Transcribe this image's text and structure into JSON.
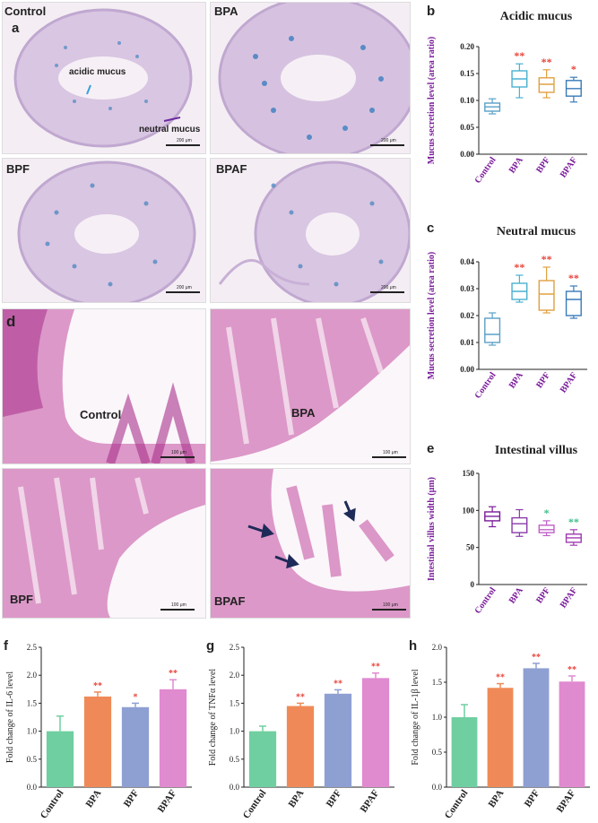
{
  "micro_a": {
    "panel_label": "a",
    "groups": [
      "Control",
      "BPA",
      "BPF",
      "BPAF"
    ],
    "acidic_label": "acidic mucus",
    "neutral_label": "neutral mucus",
    "scale_label": "200 μm"
  },
  "micro_d": {
    "panel_label": "d",
    "groups": [
      "Control",
      "BPA",
      "BPF",
      "BPAF"
    ],
    "scale_label": "100 μm"
  },
  "colors": {
    "control": "#6fcfa0",
    "bpa": "#ef8a58",
    "bpf": "#8e9fd2",
    "bpaf": "#e08ad0",
    "sig_red": "#e8443a",
    "sig_green": "#3fbf8a",
    "purple_label": "#7a1a9a"
  },
  "chart_data": [
    {
      "panel": "b",
      "type": "box",
      "title": "Acidic mucus",
      "ylabel": "Mucus secretion level (area ratio)",
      "categories": [
        "Control",
        "BPA",
        "BPF",
        "BPAF"
      ],
      "ylim": [
        0,
        0.2
      ],
      "yticks": [
        "0.00",
        "0.05",
        "0.10",
        "0.15",
        "0.20"
      ],
      "box_colors": [
        "#5aa0c8",
        "#4ab0d0",
        "#e0a040",
        "#3a7ab8"
      ],
      "boxes": [
        {
          "min": 0.075,
          "q1": 0.08,
          "median": 0.088,
          "q3": 0.095,
          "max": 0.103
        },
        {
          "min": 0.105,
          "q1": 0.125,
          "median": 0.14,
          "q3": 0.155,
          "max": 0.168
        },
        {
          "min": 0.105,
          "q1": 0.115,
          "median": 0.13,
          "q3": 0.142,
          "max": 0.157
        },
        {
          "min": 0.097,
          "q1": 0.108,
          "median": 0.122,
          "q3": 0.137,
          "max": 0.143
        }
      ],
      "significance": [
        "",
        "**",
        "**",
        "*"
      ],
      "sig_colors": [
        "",
        "#e8443a",
        "#e8443a",
        "#e8443a"
      ]
    },
    {
      "panel": "c",
      "type": "box",
      "title": "Neutral mucus",
      "ylabel": "Mucus secretion level (area ratio)",
      "categories": [
        "Control",
        "BPA",
        "BPF",
        "BPAF"
      ],
      "ylim": [
        0,
        0.04
      ],
      "yticks": [
        "0.00",
        "0.01",
        "0.02",
        "0.03",
        "0.04"
      ],
      "box_colors": [
        "#5aa0c8",
        "#4ab0d0",
        "#e0a040",
        "#3a7ab8"
      ],
      "boxes": [
        {
          "min": 0.009,
          "q1": 0.01,
          "median": 0.013,
          "q3": 0.019,
          "max": 0.021
        },
        {
          "min": 0.025,
          "q1": 0.026,
          "median": 0.029,
          "q3": 0.032,
          "max": 0.035
        },
        {
          "min": 0.021,
          "q1": 0.022,
          "median": 0.028,
          "q3": 0.033,
          "max": 0.038
        },
        {
          "min": 0.019,
          "q1": 0.02,
          "median": 0.026,
          "q3": 0.029,
          "max": 0.031
        }
      ],
      "significance": [
        "",
        "**",
        "**",
        "**"
      ],
      "sig_colors": [
        "",
        "#e8443a",
        "#e8443a",
        "#e8443a"
      ]
    },
    {
      "panel": "e",
      "type": "box",
      "title": "Intestinal villus",
      "ylabel": "Intestinal villus width (μm)",
      "categories": [
        "Control",
        "BPA",
        "BPF",
        "BPAF"
      ],
      "ylim": [
        0,
        150
      ],
      "yticks": [
        "0",
        "50",
        "100",
        "150"
      ],
      "box_colors": [
        "#7a1a9a",
        "#8a3aa8",
        "#c060c8",
        "#a03ab0"
      ],
      "boxes": [
        {
          "min": 78,
          "q1": 86,
          "median": 92,
          "q3": 98,
          "max": 105
        },
        {
          "min": 65,
          "q1": 70,
          "median": 82,
          "q3": 90,
          "max": 101
        },
        {
          "min": 66,
          "q1": 70,
          "median": 74,
          "q3": 80,
          "max": 86
        },
        {
          "min": 53,
          "q1": 57,
          "median": 63,
          "q3": 68,
          "max": 74
        }
      ],
      "significance": [
        "",
        "",
        "*",
        "**"
      ],
      "sig_colors": [
        "",
        "",
        "#3fbf8a",
        "#3fbf8a"
      ]
    },
    {
      "panel": "f",
      "type": "bar",
      "ylabel": "Fold change of IL-6 level",
      "categories": [
        "Control",
        "BPA",
        "BPF",
        "BPAF"
      ],
      "values": [
        1.0,
        1.62,
        1.43,
        1.75
      ],
      "errors": [
        0.27,
        0.08,
        0.07,
        0.17
      ],
      "ylim": [
        0,
        2.5
      ],
      "yticks": [
        "0.0",
        "0.5",
        "1.0",
        "1.5",
        "2.0",
        "2.5"
      ],
      "significance": [
        "",
        "**",
        "*",
        "**"
      ]
    },
    {
      "panel": "g",
      "type": "bar",
      "ylabel": "Fold change of TNFα level",
      "categories": [
        "Control",
        "BPA",
        "BPF",
        "BPAF"
      ],
      "values": [
        1.0,
        1.45,
        1.67,
        1.95
      ],
      "errors": [
        0.09,
        0.05,
        0.07,
        0.09
      ],
      "ylim": [
        0,
        2.5
      ],
      "yticks": [
        "0.0",
        "0.5",
        "1.0",
        "1.5",
        "2.0",
        "2.5"
      ],
      "significance": [
        "",
        "**",
        "**",
        "**"
      ]
    },
    {
      "panel": "h",
      "type": "bar",
      "ylabel": "Fold change of IL-1β level",
      "categories": [
        "Control",
        "BPA",
        "BPF",
        "BPAF"
      ],
      "values": [
        1.0,
        1.42,
        1.7,
        1.51
      ],
      "errors": [
        0.18,
        0.06,
        0.07,
        0.08
      ],
      "ylim": [
        0,
        2.0
      ],
      "yticks": [
        "0.0",
        "0.5",
        "1.0",
        "1.5",
        "2.0"
      ],
      "significance": [
        "",
        "**",
        "**",
        "**"
      ]
    }
  ]
}
